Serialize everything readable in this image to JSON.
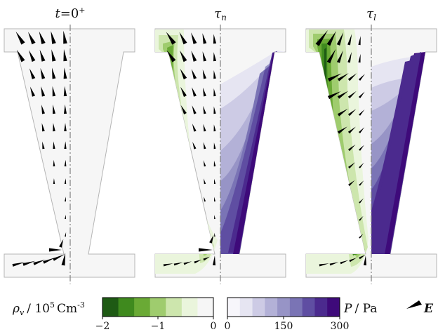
{
  "panels": [
    {
      "id": "initial",
      "title_main": "t",
      "title_rest": "=0",
      "title_sup": "+"
    },
    {
      "id": "tau-n",
      "title_main": "τ",
      "title_sub": "n"
    },
    {
      "id": "tau-l",
      "title_main": "τ",
      "title_sub": "l"
    }
  ],
  "colorbars": {
    "charge": {
      "label_symbol": "ρ",
      "label_sub": "v",
      "label_unit": "/ 10",
      "label_exp": "5",
      "label_unit2": "Cm",
      "label_unit2_exp": "-3",
      "ticks": [
        "−2",
        "−1",
        "0"
      ],
      "colors": [
        "#1e5a14",
        "#3f8a1e",
        "#6aaa35",
        "#9fcc6e",
        "#cde6ad",
        "#eaf5dc",
        "#f6f6f6"
      ]
    },
    "pressure": {
      "label_symbol": "P",
      "label_unit": "/ Pa",
      "ticks": [
        "0",
        "150",
        "300"
      ],
      "colors": [
        "#f7f6fb",
        "#e6e5f2",
        "#cdcbe5",
        "#b3b1d7",
        "#9794c6",
        "#7a74b5",
        "#5f4ea2",
        "#4b2a8e",
        "#3e0a7a"
      ]
    },
    "field": {
      "label_symbol": "E"
    }
  },
  "colors": {
    "domain_fill": "#f6f6f6",
    "domain_stroke": "#b5b5b5",
    "axis_line": "#808080",
    "arrow": "#000000"
  }
}
